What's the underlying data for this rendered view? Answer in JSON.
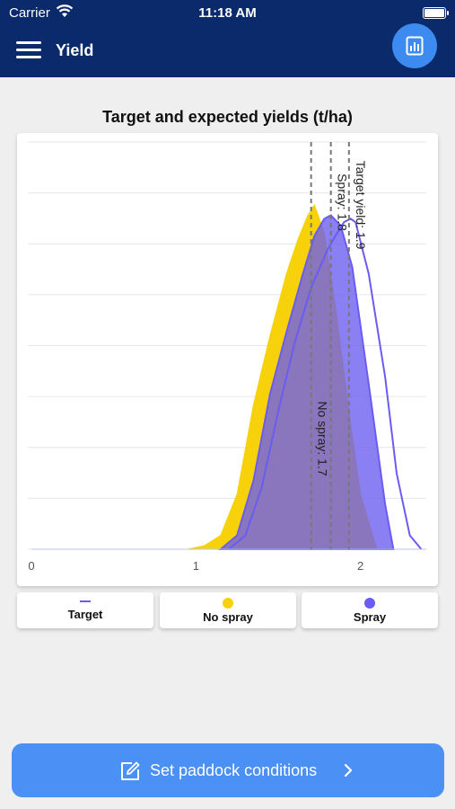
{
  "status_bar": {
    "carrier": "Carrier",
    "time": "11:18 AM"
  },
  "nav": {
    "title": "Yield",
    "menu_icon": "hamburger-menu-icon",
    "report_icon": "bar-chart-document-icon"
  },
  "chart_data": {
    "type": "area",
    "title": "Target and expected yields (t/ha)",
    "xlabel": "",
    "ylabel": "",
    "xlim": [
      0,
      2.4
    ],
    "x_ticks": [
      "0",
      "1",
      "2"
    ],
    "grid": true,
    "legend_position": "bottom",
    "series": [
      {
        "name": "No spray",
        "color": "#f7d20a",
        "x": [
          0.95,
          1.05,
          1.15,
          1.25,
          1.35,
          1.45,
          1.55,
          1.62,
          1.68,
          1.72,
          1.78,
          1.85,
          1.93,
          2.0,
          2.1
        ],
        "y": [
          0,
          0.01,
          0.04,
          0.16,
          0.42,
          0.62,
          0.8,
          0.9,
          0.97,
          1.0,
          0.92,
          0.7,
          0.4,
          0.16,
          0
        ]
      },
      {
        "name": "Spray",
        "color": "#6a5cf0",
        "x": [
          1.15,
          1.25,
          1.35,
          1.45,
          1.55,
          1.65,
          1.72,
          1.78,
          1.82,
          1.88,
          1.95,
          2.05,
          2.15,
          2.2
        ],
        "y": [
          0,
          0.04,
          0.2,
          0.45,
          0.63,
          0.8,
          0.91,
          0.96,
          0.97,
          0.94,
          0.82,
          0.48,
          0.13,
          0
        ]
      },
      {
        "name": "Target",
        "color": "#6a5cf0",
        "x": [
          1.2,
          1.3,
          1.4,
          1.5,
          1.6,
          1.7,
          1.8,
          1.86,
          1.9,
          1.94,
          1.97,
          2.05,
          2.15,
          2.22,
          2.3,
          2.37
        ],
        "y": [
          0,
          0.04,
          0.18,
          0.4,
          0.6,
          0.76,
          0.87,
          0.92,
          0.95,
          0.96,
          0.95,
          0.8,
          0.5,
          0.22,
          0.04,
          0
        ]
      }
    ],
    "markers": [
      {
        "label": "No spray: 1.7",
        "x": 1.7
      },
      {
        "label": "Spray: 1.8",
        "x": 1.82
      },
      {
        "label": "Target yield: 1.9",
        "x": 1.93
      }
    ]
  },
  "legend": {
    "target": "Target",
    "no_spray": "No spray",
    "spray": "Spray"
  },
  "cta": {
    "label": "Set paddock conditions",
    "icon": "edit-square-icon",
    "chevron": "chevron-right-icon"
  }
}
